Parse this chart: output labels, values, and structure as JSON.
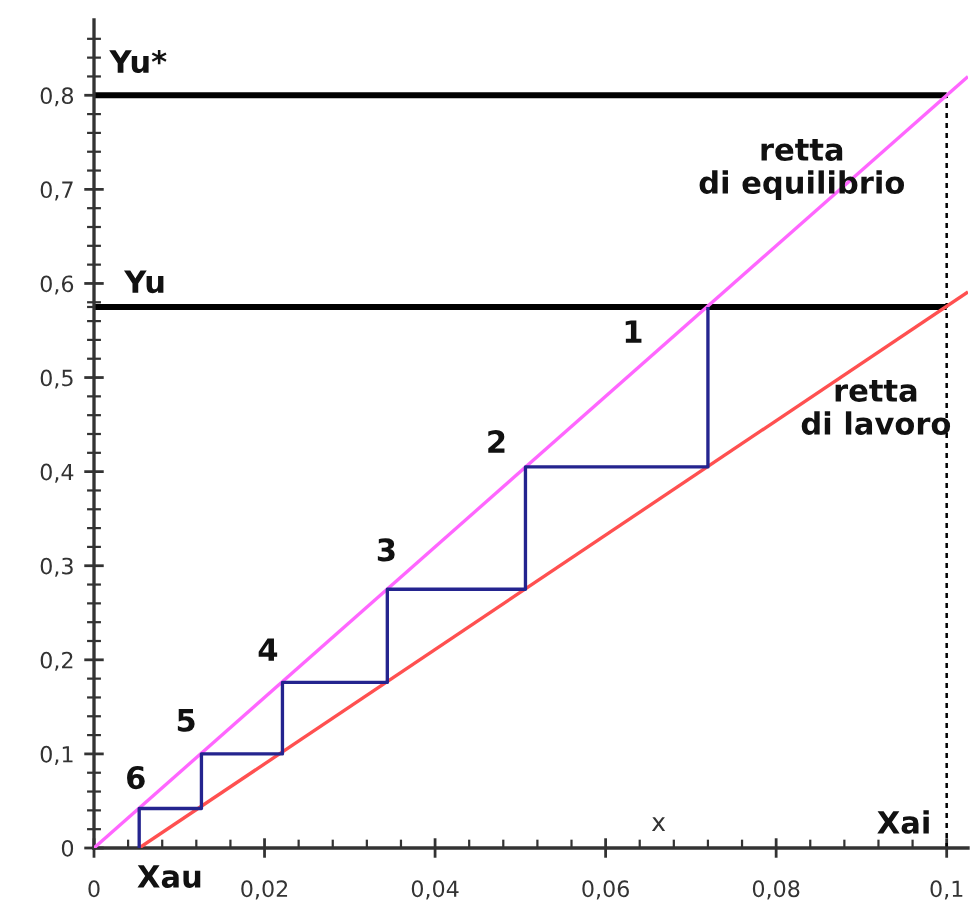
{
  "chart_data": {
    "type": "line",
    "xlabel": "x",
    "xlim": [
      0,
      0.1025
    ],
    "ylim": [
      0,
      0.88
    ],
    "xticks": [
      0,
      {
        "value": 0.02,
        "label": "0,02"
      },
      {
        "value": 0.04,
        "label": "0,04"
      },
      {
        "value": 0.06,
        "label": "0,06"
      },
      {
        "value": 0.08,
        "label": "0,08"
      },
      {
        "value": 0.1,
        "label": "0,1"
      },
      {
        "value": 0.004,
        "label": null
      },
      {
        "value": 0.008,
        "label": null
      },
      {
        "value": 0.012,
        "label": null
      },
      {
        "value": 0.016,
        "label": null
      },
      {
        "value": 0.024,
        "label": null
      },
      {
        "value": 0.028,
        "label": null
      },
      {
        "value": 0.032,
        "label": null
      },
      {
        "value": 0.036,
        "label": null
      },
      {
        "value": 0.044,
        "label": null
      },
      {
        "value": 0.048,
        "label": null
      },
      {
        "value": 0.052,
        "label": null
      },
      {
        "value": 0.056,
        "label": null
      },
      {
        "value": 0.064,
        "label": null
      },
      {
        "value": 0.068,
        "label": null
      },
      {
        "value": 0.072,
        "label": null
      },
      {
        "value": 0.076,
        "label": null
      },
      {
        "value": 0.084,
        "label": null
      },
      {
        "value": 0.088,
        "label": null
      },
      {
        "value": 0.092,
        "label": null
      },
      {
        "value": 0.096,
        "label": null
      }
    ],
    "yticks": [
      0,
      {
        "value": 0.1,
        "label": "0,1"
      },
      {
        "value": 0.2,
        "label": "0,2"
      },
      {
        "value": 0.3,
        "label": "0,3"
      },
      {
        "value": 0.4,
        "label": "0,4"
      },
      {
        "value": 0.5,
        "label": "0,5"
      },
      {
        "value": 0.6,
        "label": "0,6"
      },
      {
        "value": 0.7,
        "label": "0,7"
      },
      {
        "value": 0.8,
        "label": "0,8"
      },
      {
        "value": 0.02,
        "label": null
      },
      {
        "value": 0.04,
        "label": null
      },
      {
        "value": 0.06,
        "label": null
      },
      {
        "value": 0.08,
        "label": null
      },
      {
        "value": 0.12,
        "label": null
      },
      {
        "value": 0.14,
        "label": null
      },
      {
        "value": 0.16,
        "label": null
      },
      {
        "value": 0.18,
        "label": null
      },
      {
        "value": 0.22,
        "label": null
      },
      {
        "value": 0.24,
        "label": null
      },
      {
        "value": 0.26,
        "label": null
      },
      {
        "value": 0.28,
        "label": null
      },
      {
        "value": 0.32,
        "label": null
      },
      {
        "value": 0.34,
        "label": null
      },
      {
        "value": 0.36,
        "label": null
      },
      {
        "value": 0.38,
        "label": null
      },
      {
        "value": 0.42,
        "label": null
      },
      {
        "value": 0.44,
        "label": null
      },
      {
        "value": 0.46,
        "label": null
      },
      {
        "value": 0.48,
        "label": null
      },
      {
        "value": 0.52,
        "label": null
      },
      {
        "value": 0.54,
        "label": null
      },
      {
        "value": 0.56,
        "label": null
      },
      {
        "value": 0.575,
        "label": null
      },
      {
        "value": 0.58,
        "label": null
      },
      {
        "value": 0.62,
        "label": null
      },
      {
        "value": 0.64,
        "label": null
      },
      {
        "value": 0.66,
        "label": null
      },
      {
        "value": 0.68,
        "label": null
      },
      {
        "value": 0.72,
        "label": null
      },
      {
        "value": 0.74,
        "label": null
      },
      {
        "value": 0.76,
        "label": null
      },
      {
        "value": 0.78,
        "label": null
      },
      {
        "value": 0.82,
        "label": null
      },
      {
        "value": 0.84,
        "label": null
      },
      {
        "value": 0.86,
        "label": null
      }
    ],
    "grid": false,
    "series": [
      {
        "color": "#000000",
        "x": [
          0,
          0.1
        ],
        "values": [
          0.8,
          0.8
        ],
        "line_style": "solid"
      },
      {
        "color": "#000000",
        "x": [
          0,
          0.1
        ],
        "values": [
          0.575,
          0.575
        ],
        "line_style": "solid"
      },
      {
        "color": "#000000",
        "x": [
          0.1,
          0.1
        ],
        "values": [
          0,
          0.8
        ],
        "line_style": "dashed"
      },
      {
        "color": "#ff66ff",
        "x": [
          0,
          0.1025
        ],
        "values": [
          0,
          0.82
        ],
        "line_style": "solid"
      },
      {
        "color": "#ff5050",
        "x": [
          0.0053,
          0.1025
        ],
        "values": [
          0,
          0.591
        ],
        "line_style": "solid"
      },
      {
        "color": "#24248f",
        "x": [
          0.072,
          0.072,
          0.0506,
          0.0506,
          0.0344,
          0.0344,
          0.0221,
          0.0221,
          0.0126,
          0.0126,
          0.0053,
          0.0053
        ],
        "values": [
          0.575,
          0.405,
          0.405,
          0.275,
          0.275,
          0.176,
          0.176,
          0.1,
          0.1,
          0.042,
          0.042,
          0
        ],
        "line_style": "solid"
      }
    ],
    "annotations": [
      "Yu*",
      "Yu",
      "retta\ndi equilibrio",
      "retta\ndi lavoro",
      "1",
      "2",
      "3",
      "4",
      "5",
      "6",
      "Xau",
      "Xai"
    ]
  }
}
